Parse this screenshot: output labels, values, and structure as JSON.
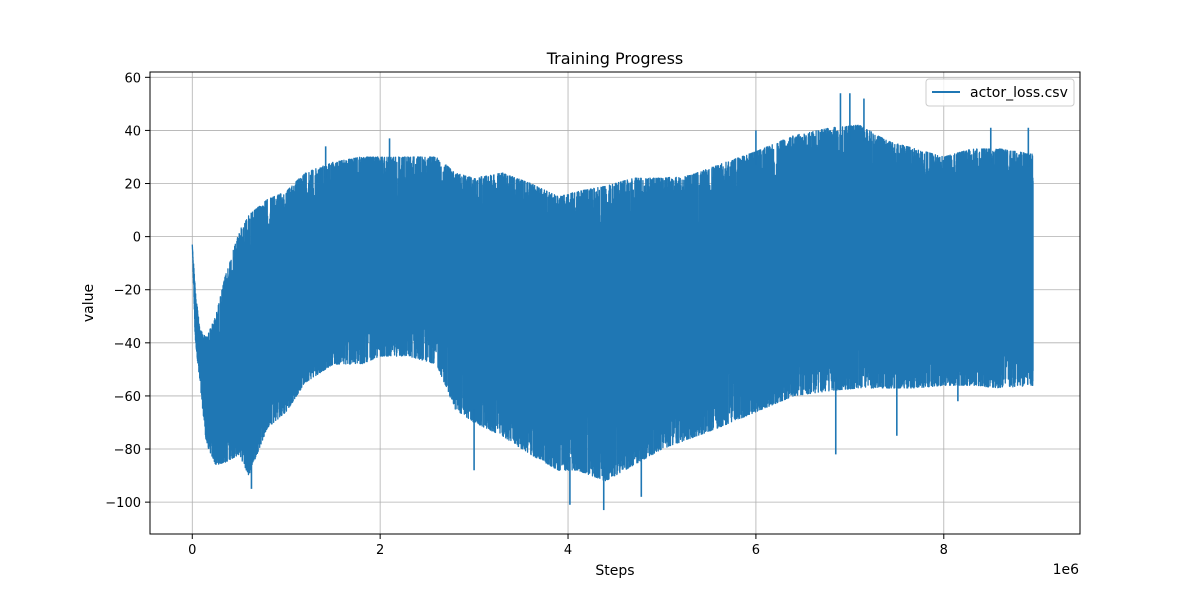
{
  "chart_data": {
    "type": "line",
    "title": "Training Progress",
    "xlabel": "Steps",
    "ylabel": "value",
    "x_offset_label": "1e6",
    "xlim": [
      -0.45,
      9.45
    ],
    "ylim": [
      -112,
      62
    ],
    "x_ticks": [
      0,
      2,
      4,
      6,
      8
    ],
    "y_ticks": [
      -100,
      -80,
      -60,
      -40,
      -20,
      0,
      20,
      40,
      60
    ],
    "x_tick_labels": [
      "0",
      "2",
      "4",
      "6",
      "8"
    ],
    "y_tick_labels": [
      "−100",
      "−80",
      "−60",
      "−40",
      "−20",
      "0",
      "20",
      "40",
      "60"
    ],
    "grid": true,
    "legend_position": "top-right",
    "series": [
      {
        "name": "actor_loss.csv",
        "color": "#1f77b4",
        "x_max": 8.95,
        "envelope": [
          {
            "x": 0.0,
            "upper": -3,
            "lower": -3
          },
          {
            "x": 0.03,
            "upper": -18,
            "lower": -38
          },
          {
            "x": 0.08,
            "upper": -35,
            "lower": -55
          },
          {
            "x": 0.15,
            "upper": -38,
            "lower": -78
          },
          {
            "x": 0.25,
            "upper": -30,
            "lower": -86
          },
          {
            "x": 0.35,
            "upper": -15,
            "lower": -85
          },
          {
            "x": 0.5,
            "upper": 2,
            "lower": -82
          },
          {
            "x": 0.6,
            "upper": 8,
            "lower": -90
          },
          {
            "x": 0.8,
            "upper": 14,
            "lower": -72
          },
          {
            "x": 1.0,
            "upper": 17,
            "lower": -66
          },
          {
            "x": 1.2,
            "upper": 24,
            "lower": -55
          },
          {
            "x": 1.5,
            "upper": 28,
            "lower": -48
          },
          {
            "x": 1.8,
            "upper": 30,
            "lower": -48
          },
          {
            "x": 2.0,
            "upper": 30,
            "lower": -45
          },
          {
            "x": 2.3,
            "upper": 30,
            "lower": -45
          },
          {
            "x": 2.6,
            "upper": 30,
            "lower": -48
          },
          {
            "x": 2.8,
            "upper": 24,
            "lower": -65
          },
          {
            "x": 3.0,
            "upper": 22,
            "lower": -70
          },
          {
            "x": 3.3,
            "upper": 24,
            "lower": -75
          },
          {
            "x": 3.6,
            "upper": 20,
            "lower": -82
          },
          {
            "x": 3.9,
            "upper": 15,
            "lower": -88
          },
          {
            "x": 4.1,
            "upper": 17,
            "lower": -88
          },
          {
            "x": 4.4,
            "upper": 19,
            "lower": -92
          },
          {
            "x": 4.7,
            "upper": 22,
            "lower": -86
          },
          {
            "x": 5.0,
            "upper": 22,
            "lower": -80
          },
          {
            "x": 5.3,
            "upper": 23,
            "lower": -76
          },
          {
            "x": 5.6,
            "upper": 27,
            "lower": -72
          },
          {
            "x": 6.0,
            "upper": 32,
            "lower": -66
          },
          {
            "x": 6.4,
            "upper": 38,
            "lower": -60
          },
          {
            "x": 6.8,
            "upper": 41,
            "lower": -58
          },
          {
            "x": 7.1,
            "upper": 42,
            "lower": -57
          },
          {
            "x": 7.4,
            "upper": 36,
            "lower": -57
          },
          {
            "x": 7.7,
            "upper": 33,
            "lower": -57
          },
          {
            "x": 8.0,
            "upper": 30,
            "lower": -56
          },
          {
            "x": 8.3,
            "upper": 33,
            "lower": -56
          },
          {
            "x": 8.6,
            "upper": 33,
            "lower": -57
          },
          {
            "x": 8.95,
            "upper": 31,
            "lower": -56
          }
        ],
        "spikes": [
          {
            "x": 0.63,
            "y": -95
          },
          {
            "x": 1.42,
            "y": 34
          },
          {
            "x": 2.1,
            "y": 37
          },
          {
            "x": 3.0,
            "y": -88
          },
          {
            "x": 4.02,
            "y": -101
          },
          {
            "x": 4.38,
            "y": -103
          },
          {
            "x": 4.78,
            "y": -98
          },
          {
            "x": 6.0,
            "y": 40
          },
          {
            "x": 6.9,
            "y": 54
          },
          {
            "x": 7.0,
            "y": 54
          },
          {
            "x": 7.15,
            "y": 52
          },
          {
            "x": 6.85,
            "y": -82
          },
          {
            "x": 7.5,
            "y": -75
          },
          {
            "x": 8.5,
            "y": 41
          },
          {
            "x": 8.9,
            "y": 41
          },
          {
            "x": 8.15,
            "y": -62
          }
        ]
      }
    ]
  }
}
